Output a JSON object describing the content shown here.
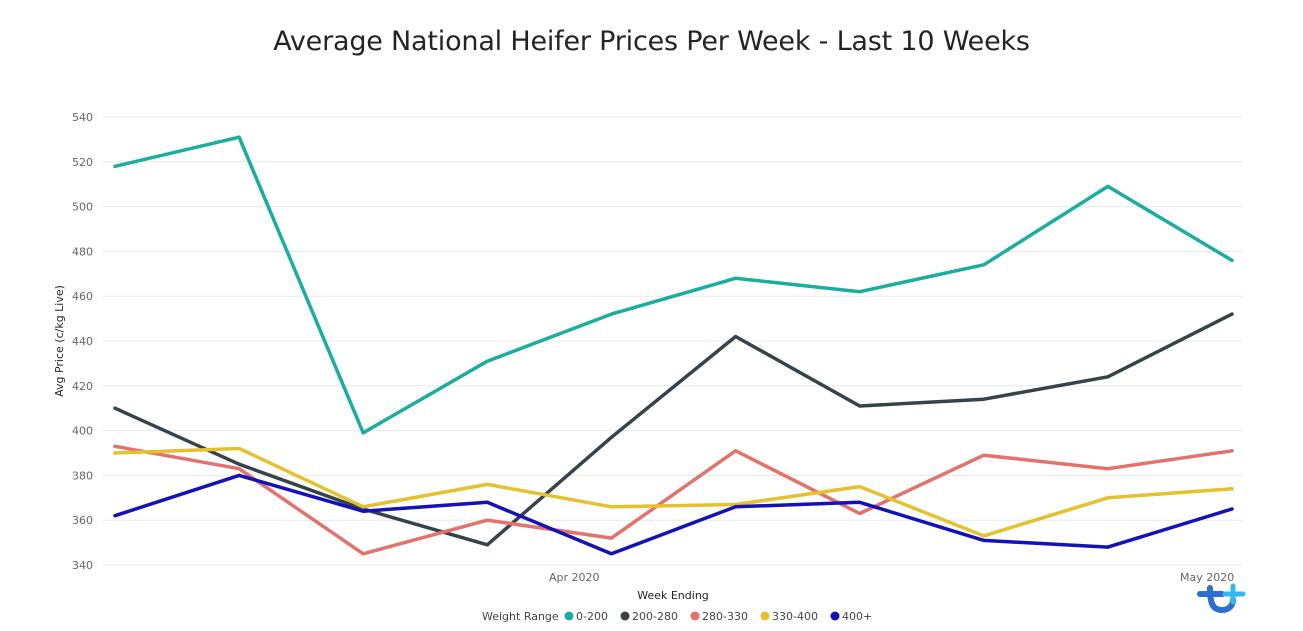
{
  "chart_data": {
    "type": "line",
    "title": "Average National Heifer Prices Per Week - Last 10 Weeks",
    "xlabel": "Week Ending",
    "ylabel": "Avg Price (c/kg Live)",
    "ylim": [
      340,
      540
    ],
    "yticks": [
      340,
      360,
      380,
      400,
      420,
      440,
      460,
      480,
      500,
      520,
      540
    ],
    "grid": true,
    "x_tick_labels": [
      {
        "label": "Apr 2020",
        "position": 3.7
      },
      {
        "label": "May 2020",
        "position": 8.8
      }
    ],
    "x": [
      0,
      1,
      2,
      3,
      4,
      5,
      6,
      7,
      8,
      9
    ],
    "legend_title": "Weight Range",
    "legend_position": "bottom-center",
    "series": [
      {
        "name": "0-200",
        "color": "#1AADA0",
        "values": [
          518,
          531,
          399,
          431,
          452,
          468,
          462,
          474,
          509,
          476
        ]
      },
      {
        "name": "200-280",
        "color": "#37434A",
        "values": [
          410,
          385,
          365,
          349,
          397,
          442,
          411,
          414,
          424,
          452
        ]
      },
      {
        "name": "280-330",
        "color": "#E3726A",
        "values": [
          393,
          383,
          345,
          360,
          352,
          391,
          363,
          389,
          383,
          391
        ]
      },
      {
        "name": "330-400",
        "color": "#E5C12E",
        "values": [
          390,
          392,
          366,
          376,
          366,
          367,
          375,
          353,
          370,
          374
        ]
      },
      {
        "name": "400+",
        "color": "#1212B8",
        "values": [
          362,
          380,
          364,
          368,
          345,
          366,
          368,
          351,
          348,
          365
        ]
      }
    ]
  },
  "logo": {
    "name": "brand-logo",
    "colors": [
      "#2A6FD1",
      "#32B9F0"
    ]
  }
}
